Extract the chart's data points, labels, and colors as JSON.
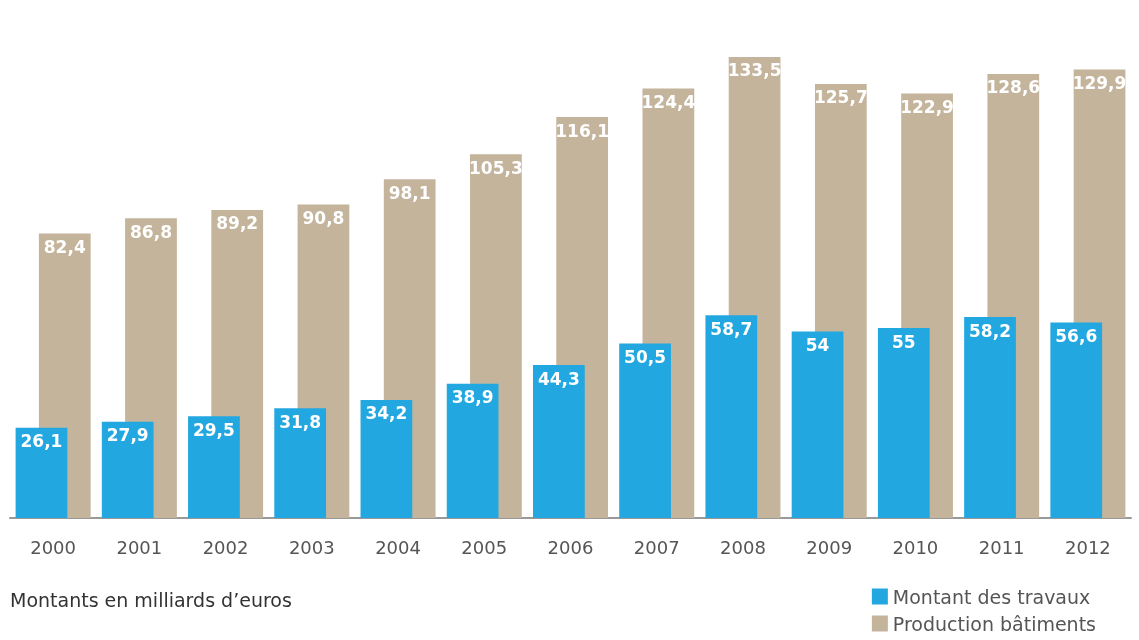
{
  "chart_data": {
    "type": "bar",
    "categories": [
      "2000",
      "2001",
      "2002",
      "2003",
      "2004",
      "2005",
      "2006",
      "2007",
      "2008",
      "2009",
      "2010",
      "2011",
      "2012"
    ],
    "series": [
      {
        "name": "Montant des travaux",
        "color": "#22a7e0",
        "values": [
          26.1,
          27.9,
          29.5,
          31.8,
          34.2,
          38.9,
          44.3,
          50.5,
          58.7,
          54,
          55,
          58.2,
          56.6
        ],
        "value_labels": [
          "26,1",
          "27,9",
          "29,5",
          "31,8",
          "34,2",
          "38,9",
          "44,3",
          "50,5",
          "58,7",
          "54",
          "55",
          "58,2",
          "56,6"
        ]
      },
      {
        "name": "Production bâtiments",
        "color": "#c4b49c",
        "values": [
          82.4,
          86.8,
          89.2,
          90.8,
          98.1,
          105.3,
          116.1,
          124.4,
          133.5,
          125.7,
          122.9,
          128.6,
          129.9
        ],
        "value_labels": [
          "82,4",
          "86,8",
          "89,2",
          "90,8",
          "98,1",
          "105,3",
          "116,1",
          "124,4",
          "133,5",
          "125,7",
          "122,9",
          "128,6",
          "129,9"
        ]
      }
    ],
    "annotations": [
      "Montants en milliards d’euros"
    ],
    "legend": "bottom right",
    "tick_labels": "x"
  }
}
